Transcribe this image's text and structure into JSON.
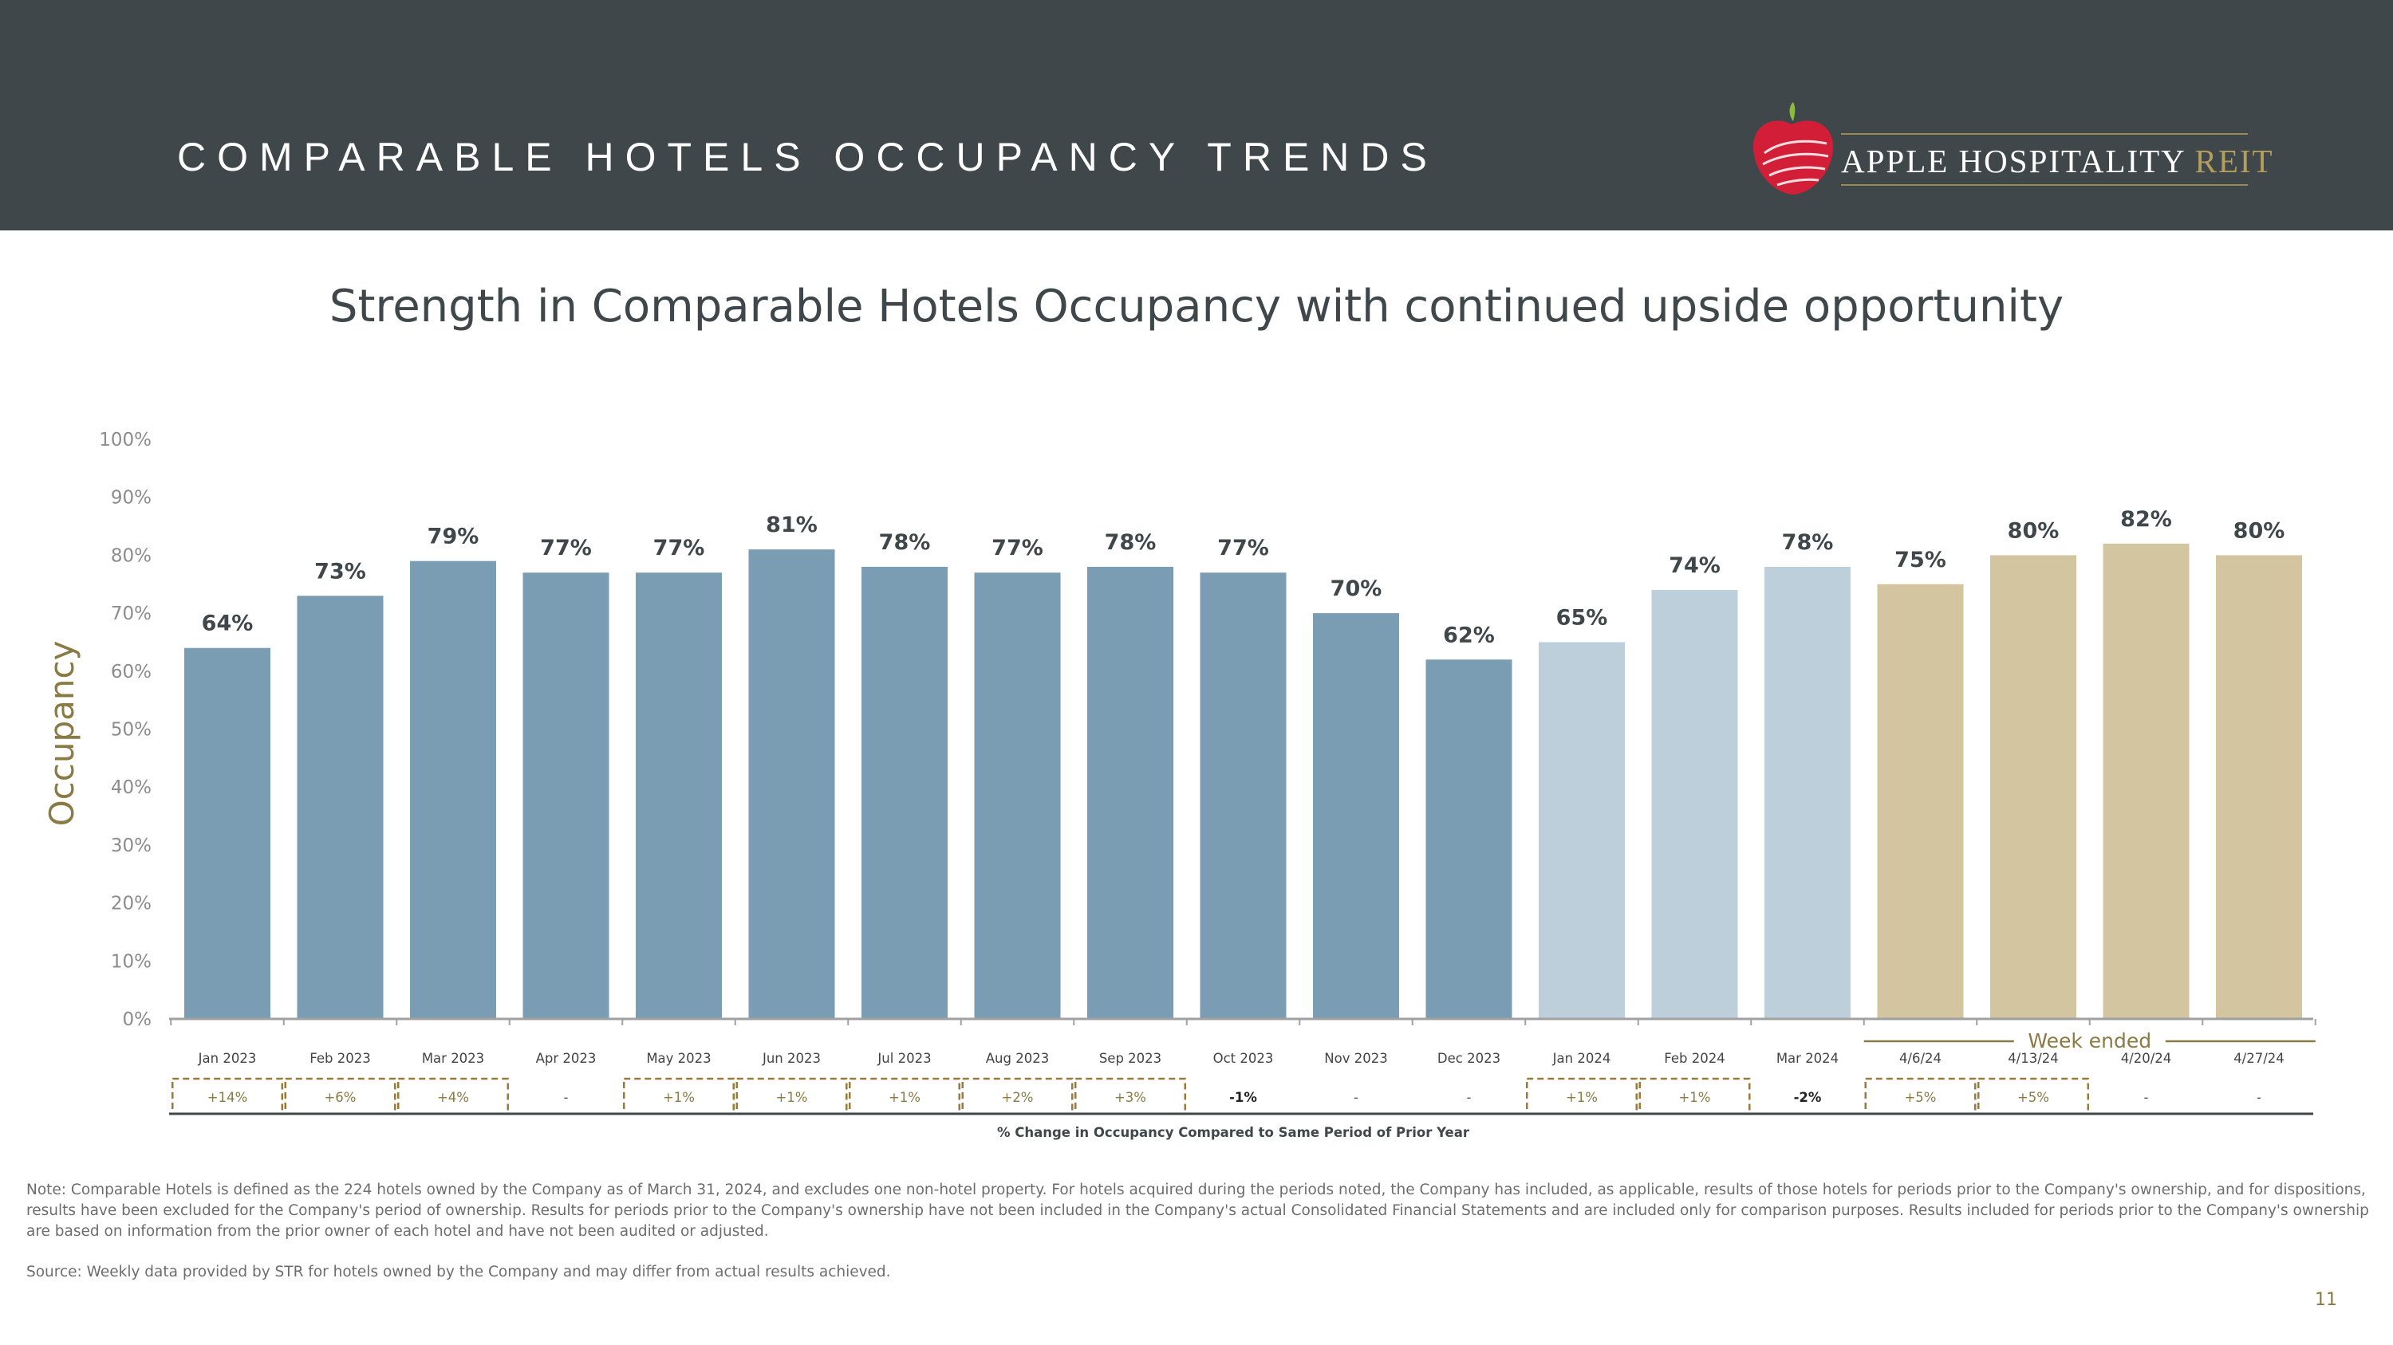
{
  "header": {
    "title": "COMPARABLE HOTELS OCCUPANCY TRENDS",
    "logo_name": "APPLE HOSPITALITY",
    "logo_suffix": "REIT"
  },
  "subtitle": "Strength in Comparable Hotels Occupancy with continued upside opportunity",
  "colors": {
    "header_bg": "#3f474b",
    "bar_2023": "#7b9db4",
    "bar_2024": "#bccfdb",
    "bar_weekly": "#d3c5a0",
    "accent_gold": "#8a7a44"
  },
  "chart_data": {
    "type": "bar",
    "ylabel": "Occupancy",
    "ylim": [
      0,
      100
    ],
    "yticks": [
      "0%",
      "10%",
      "20%",
      "30%",
      "40%",
      "50%",
      "60%",
      "70%",
      "80%",
      "90%",
      "100%"
    ],
    "categories": [
      "Jan 2023",
      "Feb 2023",
      "Mar 2023",
      "Apr 2023",
      "May 2023",
      "Jun 2023",
      "Jul 2023",
      "Aug 2023",
      "Sep 2023",
      "Oct 2023",
      "Nov 2023",
      "Dec 2023",
      "Jan 2024",
      "Feb 2024",
      "Mar 2024",
      "4/6/24",
      "4/13/24",
      "4/20/24",
      "4/27/24"
    ],
    "values": [
      64,
      73,
      79,
      77,
      77,
      81,
      78,
      77,
      78,
      77,
      70,
      62,
      65,
      74,
      78,
      75,
      80,
      82,
      80
    ],
    "value_labels": [
      "64%",
      "73%",
      "79%",
      "77%",
      "77%",
      "81%",
      "78%",
      "77%",
      "78%",
      "77%",
      "70%",
      "62%",
      "65%",
      "74%",
      "78%",
      "75%",
      "80%",
      "82%",
      "80%"
    ],
    "groups": [
      "2023",
      "2023",
      "2023",
      "2023",
      "2023",
      "2023",
      "2023",
      "2023",
      "2023",
      "2023",
      "2023",
      "2023",
      "2024",
      "2024",
      "2024",
      "week",
      "week",
      "week",
      "week"
    ],
    "week_group_label": "Week ended",
    "changes": [
      "+14%",
      "+6%",
      "+4%",
      "-",
      "+1%",
      "+1%",
      "+1%",
      "+2%",
      "+3%",
      "-1%",
      "-",
      "-",
      "+1%",
      "+1%",
      "-2%",
      "+5%",
      "+5%",
      "-",
      "-"
    ],
    "change_boxed": [
      true,
      true,
      true,
      false,
      true,
      true,
      true,
      true,
      true,
      false,
      false,
      false,
      true,
      true,
      false,
      true,
      true,
      false,
      false
    ],
    "changes_caption": "% Change in Occupancy Compared to Same Period of Prior Year"
  },
  "footer": {
    "note": "Note:  Comparable Hotels is defined as the 224 hotels owned by the Company as of March 31, 2024, and excludes one non-hotel property. For hotels acquired during the periods noted, the Company has included, as applicable, results of those hotels for periods prior to the Company's ownership, and for dispositions, results have been excluded for the Company's period of ownership. Results for periods prior to the Company's ownership have not been included in the Company's actual Consolidated Financial Statements and are included only for comparison purposes. Results included for periods prior to the Company's ownership are based on information from the prior owner of each hotel and have not been audited or adjusted.",
    "source": "Source:  Weekly data provided by STR for hotels owned by the Company and may differ from actual results achieved.",
    "page_number": "11"
  }
}
